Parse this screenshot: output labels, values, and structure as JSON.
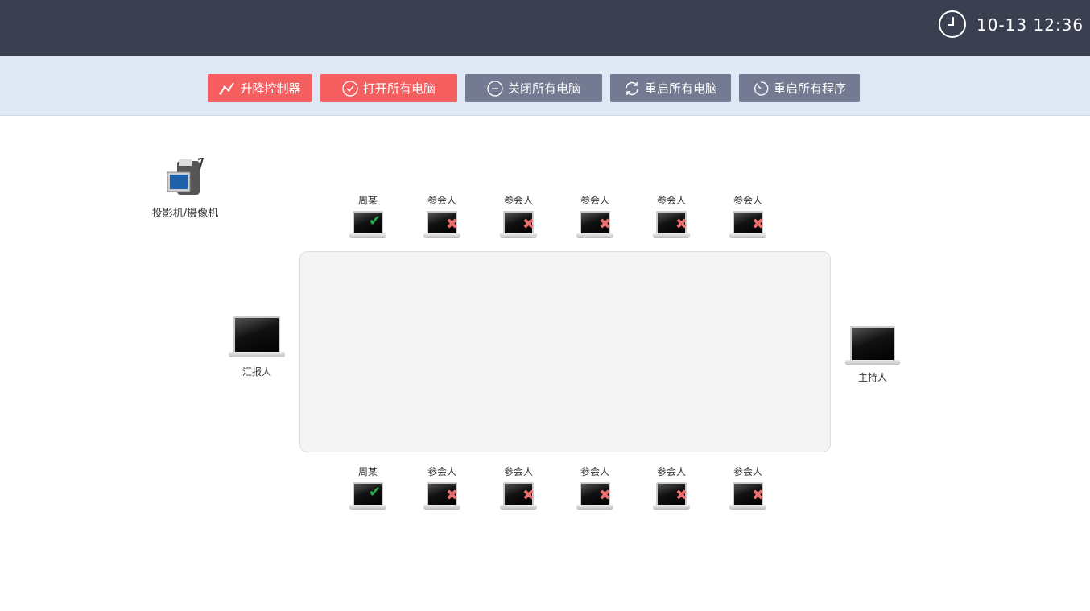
{
  "header": {
    "time": "10-13 12:36",
    "clock_icon": "clock-icon"
  },
  "toolbar": {
    "buttons": [
      {
        "label": "升降控制器",
        "icon": "line-chart-icon",
        "color": "#f65f5f"
      },
      {
        "label": "打开所有电脑",
        "icon": "check-circle-icon",
        "color": "#f65f5f"
      },
      {
        "label": "关闭所有电脑",
        "icon": "minus-circle-icon",
        "color": "#737a91"
      },
      {
        "label": "重启所有电脑",
        "icon": "refresh-icon",
        "color": "#737a91"
      },
      {
        "label": "重启所有程序",
        "icon": "timer-icon",
        "color": "#737a91"
      }
    ]
  },
  "projector": {
    "label": "投影机/摄像机"
  },
  "reporter": {
    "label": "汇报人"
  },
  "host": {
    "label": "主持人"
  },
  "top_seats": [
    {
      "label": "周某",
      "status": "online"
    },
    {
      "label": "参会人",
      "status": "offline"
    },
    {
      "label": "参会人",
      "status": "offline"
    },
    {
      "label": "参会人",
      "status": "offline"
    },
    {
      "label": "参会人",
      "status": "offline"
    },
    {
      "label": "参会人",
      "status": "offline"
    }
  ],
  "bottom_seats": [
    {
      "label": "周某",
      "status": "online"
    },
    {
      "label": "参会人",
      "status": "offline"
    },
    {
      "label": "参会人",
      "status": "offline"
    },
    {
      "label": "参会人",
      "status": "offline"
    },
    {
      "label": "参会人",
      "status": "offline"
    },
    {
      "label": "参会人",
      "status": "offline"
    }
  ]
}
